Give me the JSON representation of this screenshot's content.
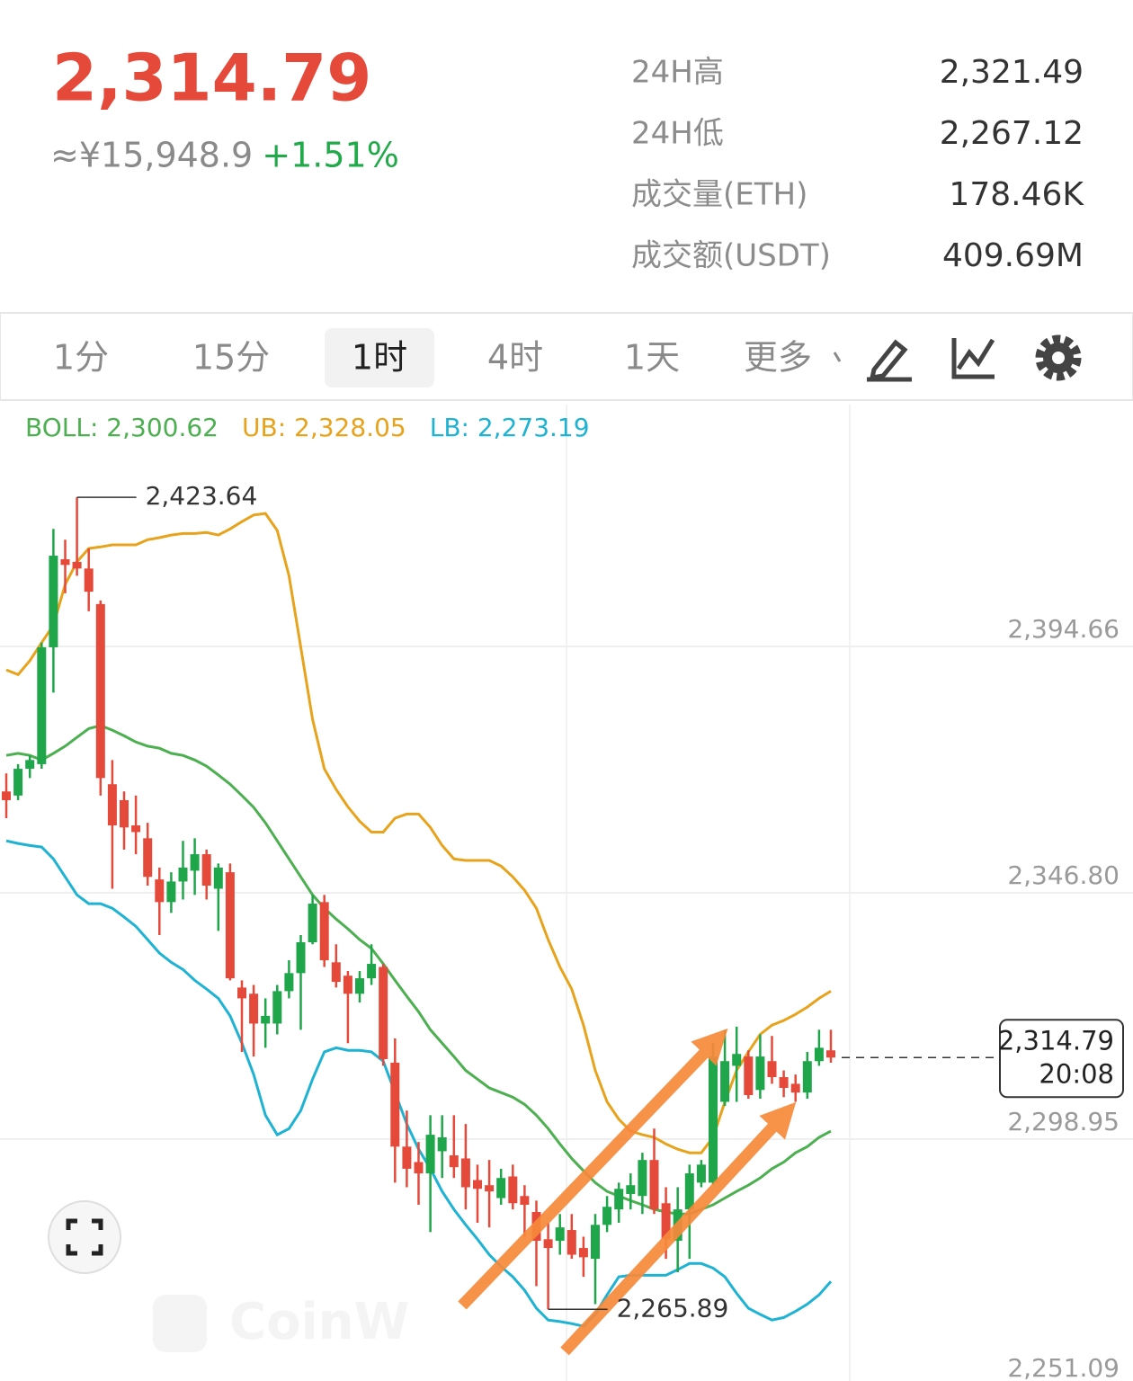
{
  "header": {
    "price": "2,314.79",
    "fiat": "≈¥15,948.9",
    "change": "+1.51%",
    "stats": [
      {
        "label": "24H高",
        "value": "2,321.49"
      },
      {
        "label": "24H低",
        "value": "2,267.12"
      },
      {
        "label": "成交量(ETH)",
        "value": "178.46K"
      },
      {
        "label": "成交额(USDT)",
        "value": "409.69M"
      }
    ]
  },
  "tabs": {
    "items": [
      "1分",
      "15分",
      "1时",
      "4时",
      "1天",
      "更多"
    ],
    "active": 2
  },
  "chart_data": {
    "type": "candlestick",
    "watermark": "CoinW",
    "up_color": "#1fa64a",
    "down_color": "#e5493a",
    "grid": true,
    "ylim": [
      2251.09,
      2441.65
    ],
    "yticks": [
      {
        "value": 2394.66,
        "label": "2,394.66"
      },
      {
        "value": 2346.8,
        "label": "2,346.80"
      },
      {
        "value": 2298.95,
        "label": "2,298.95"
      },
      {
        "value": 2251.09,
        "label": "2,251.09"
      }
    ],
    "ohlc": [
      [
        2366.5,
        2370.0,
        2361.3,
        2364.8
      ],
      [
        2365.7,
        2371.8,
        2364.8,
        2370.9
      ],
      [
        2370.9,
        2373.5,
        2369.1,
        2372.6
      ],
      [
        2371.8,
        2395.4,
        2370.9,
        2394.5
      ],
      [
        2394.5,
        2417.5,
        2385.7,
        2412.3
      ],
      [
        2411.6,
        2415.4,
        2405.0,
        2410.5
      ],
      [
        2411.1,
        2423.64,
        2408.4,
        2409.8
      ],
      [
        2409.8,
        2413.7,
        2401.5,
        2405.3
      ],
      [
        2402.9,
        2403.6,
        2365.7,
        2369.1
      ],
      [
        2367.9,
        2372.6,
        2347.6,
        2359.9
      ],
      [
        2364.8,
        2366.5,
        2355.2,
        2359.5
      ],
      [
        2359.9,
        2365.7,
        2354.3,
        2358.6
      ],
      [
        2357.4,
        2360.4,
        2348.2,
        2349.9
      ],
      [
        2349.4,
        2351.7,
        2338.6,
        2345.0
      ],
      [
        2345.0,
        2350.8,
        2342.9,
        2349.0
      ],
      [
        2349.0,
        2356.9,
        2345.5,
        2351.7
      ],
      [
        2351.1,
        2357.4,
        2346.4,
        2354.3
      ],
      [
        2354.3,
        2355.2,
        2345.5,
        2348.2
      ],
      [
        2347.6,
        2352.5,
        2339.4,
        2351.7
      ],
      [
        2350.8,
        2352.5,
        2329.8,
        2330.2
      ],
      [
        2328.4,
        2329.8,
        2315.9,
        2326.3
      ],
      [
        2327.2,
        2328.9,
        2315.0,
        2321.4
      ],
      [
        2321.4,
        2326.3,
        2316.7,
        2322.9
      ],
      [
        2321.4,
        2328.9,
        2319.3,
        2327.7
      ],
      [
        2327.7,
        2333.7,
        2326.3,
        2331.2
      ],
      [
        2331.2,
        2338.6,
        2320.2,
        2337.2
      ],
      [
        2337.2,
        2346.4,
        2336.8,
        2344.7
      ],
      [
        2345.0,
        2346.4,
        2332.4,
        2333.7
      ],
      [
        2333.3,
        2336.8,
        2328.4,
        2329.5
      ],
      [
        2330.7,
        2331.6,
        2317.6,
        2327.2
      ],
      [
        2327.2,
        2331.6,
        2325.5,
        2330.2
      ],
      [
        2330.2,
        2336.8,
        2328.9,
        2333.0
      ],
      [
        2332.4,
        2333.0,
        2313.2,
        2314.5
      ],
      [
        2313.8,
        2318.5,
        2290.5,
        2297.5
      ],
      [
        2297.5,
        2304.5,
        2289.6,
        2293.2
      ],
      [
        2294.5,
        2298.4,
        2286.2,
        2292.3
      ],
      [
        2292.3,
        2303.6,
        2280.9,
        2299.8
      ],
      [
        2296.6,
        2303.6,
        2291.4,
        2299.3
      ],
      [
        2295.8,
        2303.6,
        2291.4,
        2293.5
      ],
      [
        2295.2,
        2301.9,
        2285.3,
        2289.6
      ],
      [
        2291.0,
        2294.0,
        2282.7,
        2289.3
      ],
      [
        2290.0,
        2294.9,
        2281.8,
        2288.8
      ],
      [
        2287.5,
        2293.2,
        2286.2,
        2291.4
      ],
      [
        2291.7,
        2294.0,
        2285.3,
        2286.5
      ],
      [
        2287.9,
        2290.0,
        2280.0,
        2286.2
      ],
      [
        2284.8,
        2287.0,
        2270.4,
        2279.2
      ],
      [
        2279.5,
        2282.7,
        2265.89,
        2277.8
      ],
      [
        2279.2,
        2284.4,
        2276.5,
        2281.8
      ],
      [
        2281.3,
        2284.4,
        2275.7,
        2276.5
      ],
      [
        2277.8,
        2280.0,
        2272.2,
        2276.0
      ],
      [
        2275.7,
        2284.4,
        2266.9,
        2282.3
      ],
      [
        2282.3,
        2287.9,
        2280.9,
        2285.8
      ],
      [
        2285.3,
        2290.5,
        2282.7,
        2289.3
      ],
      [
        2288.3,
        2292.3,
        2285.3,
        2290.0
      ],
      [
        2287.9,
        2296.3,
        2284.4,
        2294.9
      ],
      [
        2294.9,
        2301.0,
        2284.4,
        2285.3
      ],
      [
        2286.5,
        2289.6,
        2275.7,
        2279.5
      ],
      [
        2279.2,
        2289.6,
        2273.1,
        2285.3
      ],
      [
        2285.3,
        2294.0,
        2275.7,
        2292.3
      ],
      [
        2290.5,
        2294.9,
        2289.6,
        2294.0
      ],
      [
        2290.5,
        2317.6,
        2290.0,
        2315.0
      ],
      [
        2306.2,
        2320.2,
        2305.4,
        2314.1
      ],
      [
        2313.2,
        2320.8,
        2306.2,
        2315.5
      ],
      [
        2315.0,
        2316.2,
        2306.8,
        2307.5
      ],
      [
        2308.5,
        2319.3,
        2306.8,
        2315.0
      ],
      [
        2314.1,
        2319.0,
        2309.7,
        2311.0
      ],
      [
        2311.0,
        2312.3,
        2307.1,
        2308.9
      ],
      [
        2309.7,
        2311.5,
        2306.2,
        2308.0
      ],
      [
        2308.0,
        2315.9,
        2306.8,
        2314.1
      ],
      [
        2314.1,
        2320.2,
        2313.2,
        2316.7
      ],
      [
        2316.2,
        2320.2,
        2313.8,
        2314.79
      ]
    ],
    "series": [
      {
        "name": "BOLL: 2,300.62",
        "color": "#4caf50",
        "values": [
          2373.5,
          2373.9,
          2373.5,
          2372.6,
          2373.9,
          2375.3,
          2377.0,
          2378.7,
          2379.3,
          2378.4,
          2377.3,
          2376.1,
          2375.3,
          2374.9,
          2373.9,
          2373.5,
          2372.6,
          2371.4,
          2369.7,
          2367.9,
          2365.7,
          2363.4,
          2360.4,
          2356.9,
          2353.4,
          2349.9,
          2346.4,
          2343.8,
          2341.7,
          2339.8,
          2337.7,
          2336.0,
          2333.0,
          2329.8,
          2326.7,
          2323.7,
          2320.2,
          2317.6,
          2315.0,
          2312.3,
          2310.6,
          2308.9,
          2308.0,
          2307.1,
          2305.7,
          2303.6,
          2301.0,
          2298.0,
          2295.2,
          2292.8,
          2290.5,
          2288.8,
          2287.9,
          2287.0,
          2286.2,
          2285.3,
          2284.8,
          2284.4,
          2284.4,
          2285.3,
          2286.2,
          2287.5,
          2288.8,
          2290.0,
          2291.4,
          2293.2,
          2294.5,
          2296.3,
          2297.5,
          2299.3,
          2300.5
        ]
      },
      {
        "name": "UB: 2,328.05",
        "color": "#e8a31c",
        "values": [
          2390.1,
          2389.2,
          2391.9,
          2395.4,
          2398.8,
          2406.7,
          2411.1,
          2413.7,
          2414.0,
          2414.4,
          2414.4,
          2414.4,
          2415.4,
          2415.8,
          2416.3,
          2416.6,
          2416.6,
          2416.8,
          2416.3,
          2417.5,
          2418.9,
          2420.2,
          2420.5,
          2417.2,
          2408.4,
          2394.5,
          2380.5,
          2370.9,
          2366.9,
          2363.5,
          2360.7,
          2358.6,
          2358.6,
          2361.3,
          2362.1,
          2362.1,
          2359.5,
          2356.0,
          2353.4,
          2353.1,
          2353.1,
          2353.1,
          2352.0,
          2349.9,
          2347.3,
          2343.8,
          2337.7,
          2332.4,
          2328.1,
          2321.1,
          2312.3,
          2306.2,
          2302.8,
          2300.5,
          2299.8,
          2299.3,
          2298.0,
          2297.0,
          2296.3,
          2296.3,
          2299.3,
          2306.2,
          2312.3,
          2315.9,
          2319.3,
          2321.1,
          2322.0,
          2323.2,
          2324.6,
          2326.3,
          2327.7
        ]
      },
      {
        "name": "LB: 2,273.19",
        "color": "#1eb3d2",
        "values": [
          2356.9,
          2356.4,
          2356.0,
          2355.7,
          2353.4,
          2349.9,
          2346.4,
          2344.7,
          2344.7,
          2343.8,
          2342.1,
          2340.3,
          2337.7,
          2335.1,
          2333.3,
          2331.9,
          2329.8,
          2328.1,
          2326.3,
          2322.9,
          2317.6,
          2311.5,
          2303.6,
          2299.8,
          2301.0,
          2304.5,
          2310.6,
          2315.9,
          2316.7,
          2316.2,
          2316.2,
          2315.9,
          2314.1,
          2308.0,
          2301.9,
          2297.0,
          2293.2,
          2288.8,
          2285.3,
          2282.3,
          2279.5,
          2276.5,
          2274.2,
          2272.2,
          2269.6,
          2266.1,
          2263.8,
          2263.5,
          2263.1,
          2262.6,
          2264.9,
          2268.7,
          2272.2,
          2272.5,
          2272.5,
          2272.5,
          2272.5,
          2273.6,
          2274.8,
          2274.8,
          2273.9,
          2272.2,
          2269.0,
          2266.1,
          2264.9,
          2263.8,
          2264.3,
          2265.5,
          2266.9,
          2268.7,
          2271.3
        ]
      }
    ],
    "extremes": [
      {
        "value": 2423.64,
        "label": "2,423.64"
      },
      {
        "value": 2265.89,
        "label": "2,265.89"
      }
    ],
    "last_price": {
      "value": 2314.79,
      "label": "2,314.79",
      "time": "20:08"
    }
  }
}
